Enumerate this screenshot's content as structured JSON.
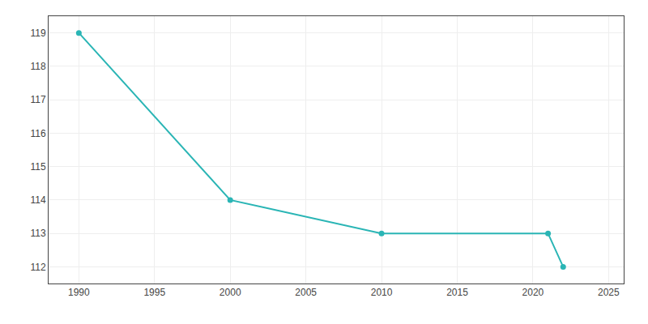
{
  "chart_data": {
    "type": "line",
    "x": [
      1990,
      2000,
      2010,
      2021,
      2022
    ],
    "values": [
      119,
      114,
      113,
      113,
      112
    ],
    "color": "#2ab5b5",
    "marker": "circle",
    "xlim": [
      1988,
      2026
    ],
    "ylim": [
      111.5,
      119.5
    ],
    "xticks": [
      1990,
      1995,
      2000,
      2005,
      2010,
      2015,
      2020,
      2025
    ],
    "yticks": [
      112,
      113,
      114,
      115,
      116,
      117,
      118,
      119
    ],
    "grid": true
  }
}
